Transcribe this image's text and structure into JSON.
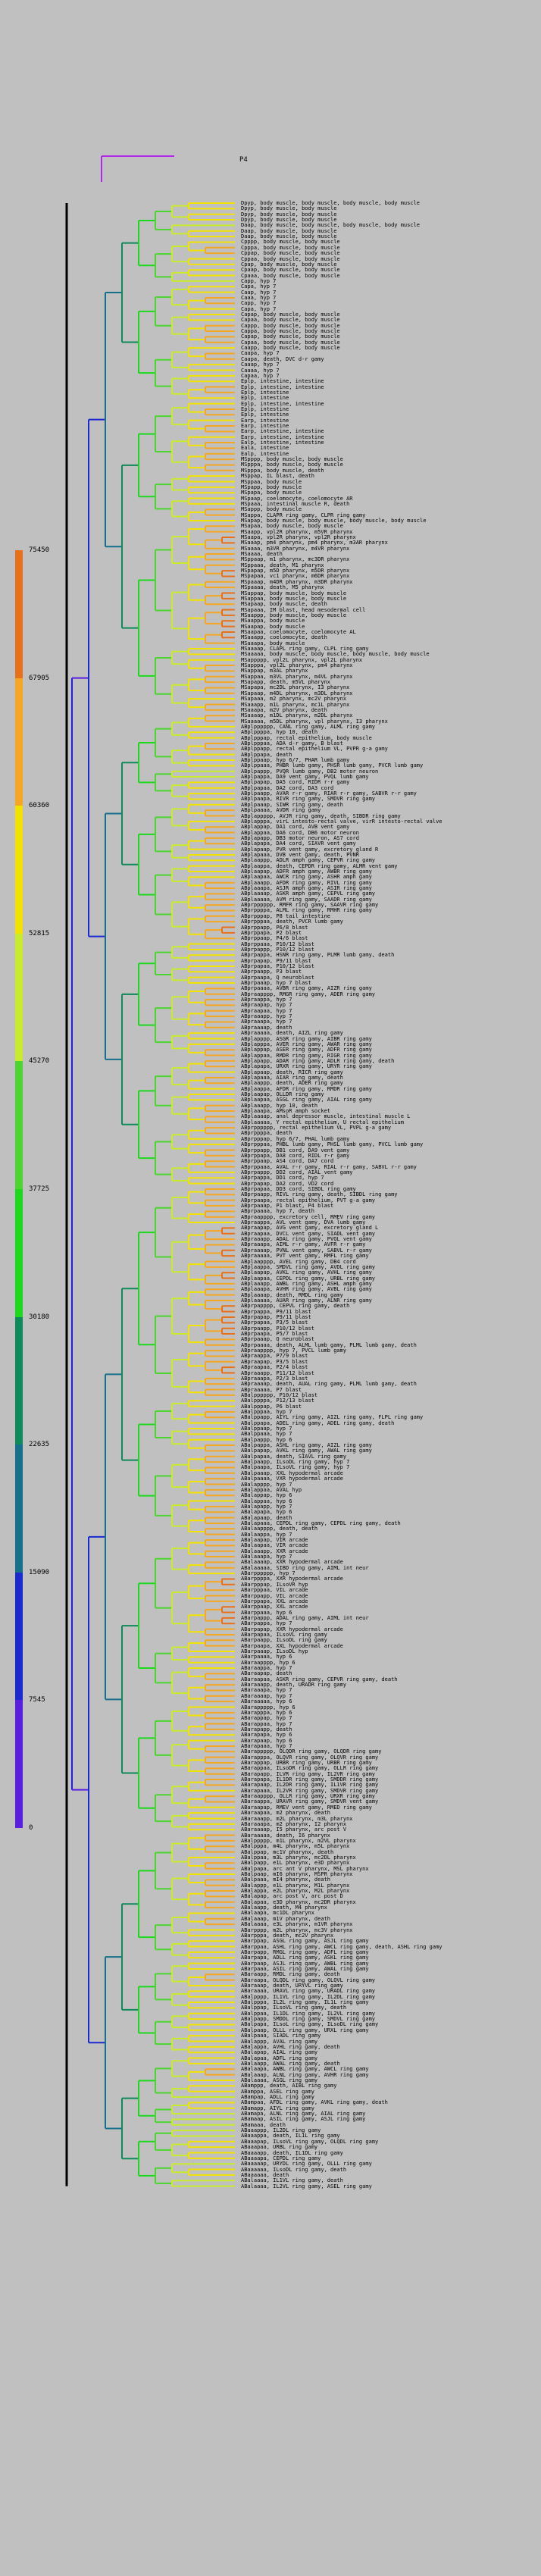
{
  "root_label": "P4",
  "scale": {
    "ticks": [
      "75450",
      "67905",
      "60360",
      "52815",
      "45270",
      "37725",
      "30180",
      "22635",
      "15090",
      "7545",
      "0"
    ],
    "colors": [
      "#e8701c",
      "#f5a623",
      "#f2e200",
      "#c8ec2c",
      "#4cd430",
      "#1ed81e",
      "#0f8a5a",
      "#16708c",
      "#1a2ad0",
      "#5a1ee0",
      "#b02ae8"
    ]
  },
  "leaf_labels": [
    "Dpyp, body muscle, body muscle, body muscle, body muscle",
    "Dpyp, body muscle, body muscle",
    "Dpyp, body muscle, body muscle",
    "Dpyp, body muscle, body muscle",
    "Daap, body muscle, body muscle, body muscle, body muscle",
    "Daap, body muscle, body muscle",
    "Daap, body muscle, body muscle",
    "Cpppp, body muscle, body muscle",
    "Cpppa, body muscle, body muscle",
    "Cppap, body muscle, body muscle",
    "Cppaa, body muscle, body muscle",
    "Cpap, body muscle, body muscle",
    "Cpaap, body muscle, body muscle",
    "Cpaaa, body muscle, body muscle",
    "Capp, hyp 7",
    "Capa, hyp 7",
    "Caap, hyp 7",
    "Caaa, hyp 7",
    "Capp, hyp 7",
    "Capa, hyp 7",
    "Capap, body muscle, body muscle",
    "Capaa, body muscle, body muscle",
    "Cappp, body muscle, body muscle",
    "Cappa, body muscle, body muscle",
    "Capap, body muscle, body muscle",
    "Capaa, body muscle, body muscle",
    "Caapp, body muscle, body muscle",
    "Caapa, hyp 7",
    "Caapa, death, DVC d-r gamy",
    "Caaap, hyp 7",
    "Caaaa, hyp 7",
    "Capaa, hyp 7",
    "Eplp, intestine, intestine",
    "Eplp, intestine, intestine",
    "Eplp, intestine",
    "Eplp, intestine",
    "Eplp, intestine, intestine",
    "Eplp, intestine",
    "Eplp, intestine",
    "Earp, intestine",
    "Earp, intestine",
    "Earp, intestine, intestine",
    "Earp, intestine, intestine",
    "Ealp, intestine, intestine",
    "Eala, intestine",
    "Ealp, intestine",
    "MSpppp, body muscle, body muscle",
    "MSpppa, body muscle, body muscle",
    "MSpppa, body muscle, death",
    "MSppap, IL blast, death",
    "MSppaa, body muscle",
    "MSpapp, body muscle",
    "MSpapa, body muscle",
    "MSpaap, coelomocyte, coelomocyte AR",
    "MSpaaa, intestinal muscle R, death",
    "MSappp, body muscle",
    "MSappa, CLAPR ring gamy, CLPR ring gamy",
    "MSapap, body muscle, body muscle, body muscle, body muscle",
    "MSapaa, body muscle, body muscle",
    "MSaapp, vpl2R pharynx, m5VR pharynx",
    "MSaapa, vpl2R pharynx, vpl2R pharynx",
    "MSaaap, pm4 pharynx, pm4 pharynx, m3AR pharynx",
    "MSaaaa, m3VR pharynx, m4VR pharynx",
    "MSaaaa, death",
    "MSppaap, m1 pharynx, mc3DR pharynx",
    "MSppaaa, death, M1 pharynx",
    "MSpapap, m5D pharynx, m5DR pharynx",
    "MSpapaa, vc1 pharynx, m6DR pharynx",
    "MSpaaap, m4DR pharynx, m3DR pharynx",
    "MSpaaaa, death, M5 pharynx",
    "MSappap, body muscle, body muscle",
    "MSappaa, body muscle, body muscle",
    "MSapaap, body muscle, death",
    "MSapaaa, IM blast, head mesodermal cell",
    "MSaappp, body muscle, body muscle",
    "MSaappa, body muscle",
    "MSaapap, body muscle",
    "MSaapaa, coelomocyte, coelomocyte AL",
    "MSaaapp, coelomocyte, death",
    "MSaaapa, body muscle",
    "MSaaaap, CLAPL ring gamy, CLPL ring gamy",
    "MSaaaaa, body muscle, body muscle, body muscle, body muscle",
    "MSappppp, vpl2L pharynx, vpl2L pharynx",
    "MSapppa, vpl2L pharynx, pm4 pharynx",
    "MSappap, m3AL pharynx",
    "MSappaa, m3VL pharynx, m4VL pharynx",
    "MSapapp, death, m5VL pharynx",
    "MSapapa, mc2DL pharynx, I3 pharynx",
    "MSapaap, m4DL pharynx, m3DL pharynx",
    "MSapaaa, m2 pharynx, mc2V pharynx",
    "MSaaapp, m1L pharynx, mc1L pharynx",
    "MSaaapa, m2V pharynx, death",
    "MSaaaap, m1DL pharynx, m2DL pharynx",
    "MSaaaaa, m5DL pharynx, vpl pharynx, I3 pharynx",
    "ABplpppppp, CANL ring gamy, ALML ring gamy",
    "ABplppppa, hyp 10, death",
    "ABplpppap, rectal epithelium, body muscle",
    "ABplpppaa, ADA d-r gamy, B blast",
    "ABplppapp, rectal epithelium VL, PVPR g-a gamy",
    "ABplppapa, death",
    "ABplppaap, hyp 6/7, PHAR lumb gamy",
    "ABplppaaa, PHBR lumb gamy, PHSR lumb gamy, PVCR lumb gamy",
    "ABplpappp, PVQR lumb gamy, DB2 motor neuron",
    "ABplpappa, DA9 vent gamy, PVQL lumb gamy",
    "ABplpapap, DA5 cord, RIDR r-r gamy",
    "ABplpapaa, DA2 cord, DA3 cord",
    "ABplpaapp, AVAR r-r gamy, RIAR r-r gamy, SABVR r-r gamy",
    "ABplpaapa, RIVR ring gamy, SMDVR ring gamy",
    "ABplpaaap, SIWR ring gamy, death",
    "ABplpaaaa, AVDR ring gamy",
    "ABplappppp, AVJR ring gamy, death, SIBDR ring gamy",
    "ABplapppa, virL intesto-rectal valve, virR intesto-rectal valve",
    "ABplappap, DA1 cord, AVB vent gamy",
    "ABplappaa, DA6 cord, DB6 motor neuron",
    "ABplapapp, DB3 motor neuron, AS7 cord",
    "ABplapapa, DA4 cord, SIAVR vent gamy",
    "ABplapaap, PVR vent gamy, excretory gland R",
    "ABplapaaa, DVB vent gamy, death, PVNR",
    "ABplaappp, ADLR amph gamy, CEPVR ring gamy",
    "ABplaappa, death, CEPDR ring gamy, ALMR vent gamy",
    "ABplaapap, ADFR amph gamy, AWBR ring gamy",
    "ABplaapaa, AWCR ring gamy, ASHR amph gamy",
    "ABplaaapp, AFDR ring gamy, RIVL ring gamy",
    "ABplaaapa, ASJR amph gamy, ASIR ring gamy",
    "ABplaaaap, ASKR amph gamy, CEPVL ring gamy",
    "ABplaaaaa, AVM ring gamy, SAADR ring gamy",
    "ABprpppppp, RMFR ring gamy, SAAVR ring gamy",
    "ABprppppa, ALML ring gamy, RMHR ring gamy",
    "ABprpppap, P8 tail intestine",
    "ABprpppaa, death, PVCR lumb gamy",
    "ABprppapp, P6/8 blast",
    "ABprppapa, P2 blast",
    "ABprppaap, P4/6 blast",
    "ABprppaaa, P10/12 blast",
    "ABprpappp, P10/12 blast",
    "ABprpappa, HSNR ring gamy, PLMR lumb gamy, death",
    "ABprpapap, P9/11 blast",
    "ABprpapaa, P10/12 blast",
    "ABprpaapp, P3 blast",
    "ABprpaapa, Q neuroblast",
    "ABprpaaap, hyp 7 blast",
    "ABprpaaaa, AVBR ring gamy, AIZR ring gamy",
    "ABpraapppp, RMGR ring gamy, ADER ring gamy",
    "ABpraappa, hyp 7",
    "ABpraapap, hyp 7",
    "ABpraapaa, hyp 7",
    "ABpraaapp, hyp 7",
    "ABpraaapa, hyp 7",
    "ABpraaaap, death",
    "ABpraaaaa, death, AIZL ring gamy",
    "ABplapppp, ASGR ring gamy, AIBR ring gamy",
    "ABplapppa, AVER ring gamy, AWAR ring gamy",
    "ABplappap, ASER ring gamy, ADFR ring gamy",
    "ABplappaa, RMDR ring gamy, RIGR ring gamy",
    "ABplapapp, ADAR ring gamy, ADLR ring gamy, death",
    "ABplapapa, URXR ring gamy, URYR ring gamy",
    "ABplapaap, death, RICR ring gamy",
    "ABplapaaa, AIAR ring gamy, death",
    "ABplaappp, death, ADER ring gamy",
    "ABplaappa, AFDR ring gamy, RMDR ring gamy",
    "ABplaapap, OLLDR ring gamy",
    "ABplaapaa, ASGL ring gamy, AIAL ring gamy",
    "ABplaaapp, hyp 10, death",
    "ABplaaapa, AMsoR amph socket",
    "ABplaaaap, anal depressor muscle, intestinal muscle L",
    "ABplaaaaa, Y rectal epithelium, U rectal epithelium",
    "ABprpppppp, rectal epithelium VL, PVPL g-a gamy",
    "ABprppppa, death",
    "ABprpppap, hyp 6/7, PHAL lumb gamy",
    "ABprpppaa, PHBL lumb gamy, PHSL lumb gamy, PVCL lumb gamy",
    "ABprppapp, DB1 cord, DA9 vent gamy",
    "ABprppapa, DA8 cord, RIDL r-r gamy",
    "ABprppaap, AS4 cord, DA7 cord",
    "ABprppaaa, AVAL r-r gamy, RIAL r-r gamy, SABVL r-r gamy",
    "ABprpappp, DD2 cord, AIAL vent gamy",
    "ABprpappa, DD1 cord, hyp 7",
    "ABprpapap, DA2 cord, VD2 cord",
    "ABprpapaa, DD3 cord, SIBDL ring gamy",
    "ABprpaapp, RIVL ring gamy, death, SIBDL ring gamy",
    "ABprpaapa, rectal epithelium, PVT g-a gamy",
    "ABprpaaap, P1 blast, P4 blast",
    "ABprpaaaa, hyp 7, death",
    "ABpraapppp, excretory cell, RMEV ring gamy",
    "ABpraappa, AVL vent gamy, DVA lumb gamy",
    "ABpraapap, AVG vent gamy, excretory gland L",
    "ABpraapaa, DVCL vent gamy, SIADL vent gamy",
    "ABpraaapp, ADAL ring gamy, PVQL vent gamy",
    "ABpraaapa, AIML r-r gamy, AVFR r-r gamy",
    "ABpraaaap, PVNL vent gamy, SABVL r-r gamy",
    "ABpraaaaa, PVT vent gamy, RMFL ring gamy",
    "ABplaapppp, AVEL ring gamy, DB4 cord",
    "ABplaappa, SMDVL ring gamy, AVDL ring gamy",
    "ABplaapap, AVKL ring gamy, AVHL ring gamy",
    "ABplaapaa, CEPDL ring gamy, URBL ring gamy",
    "ABplaaapp, AWBL ring gamy, ASHL amph gamy",
    "ABplaaapa, AVHR ring gamy, AVBL ring gamy",
    "ABplaaaap, death, RMDL ring gamy",
    "ABplaaaaa, AUAR ring gamy, ALNR ring gamy",
    "ABprpapppp, CEPVL ring gamy, death",
    "ABprpappa, P9/11 blast",
    "ABprpapap, P9/11 blast",
    "ABprpapaa, P3/5 blast",
    "ABprpaapp, P10/12 blast",
    "ABprpaapa, P5/7 blast",
    "ABprpaaap, Q neuroblast",
    "ABprpaaaa, death, ALML lumb gamy, PLML lumb gamy, death",
    "ABpraapppp, hyp 7, PVCL lumb gamy",
    "ABpraappa, P7/9 blast",
    "ABpraapap, P3/5 blast",
    "ABpraapaa, P2/4 blast",
    "ABpraaapp, P11/12 blast",
    "ABpraaapa, P2/3 blast",
    "ABpraaaap, death, AUAL ring gamy, PLML lumb gamy, death",
    "ABpraaaaa, P7 blast",
    "ABalpppppp, P10/12 blast",
    "ABalppppa, P12/13 blast",
    "ABalpppap, P6 blast",
    "ABalpppaa, hyp 7",
    "ABalppapp, AIYL ring gamy, AIZL ring gamy, FLPL ring gamy",
    "ABalppapa, ADEL ring gamy, ADEL ring gamy, death",
    "ABalppaap, hyp 7",
    "ABalppaaa, hyp 7",
    "ABalpappp, hyp 6",
    "ABalpappa, ASHL ring gamy, AIZL ring gamy",
    "ABalpapap, AVKL ring gamy, AWAL ring gamy",
    "ABalpapaa, death, SIAVL ring gamy",
    "ABalpaapp, ILsoDL ring gamy, hyp 7",
    "ABalpaapa, ILsoVL ring gamy, hyp 7",
    "ABalpaaap, XXL hypodermal arcade",
    "ABalpaaaa, VXR hypodermal arcade",
    "ABalapppp, hyp 7",
    "ABalappaa, AVAL hyp",
    "ABalappap, hyp 6",
    "ABalappaa, hyp 6",
    "ABalapapp, hyp 7",
    "ABalapapa, hyp 6",
    "ABalapaap, death",
    "ABalapaaa, CEPDL ring gamy, CEPDL ring gamy, death",
    "ABalaapppp, death, death",
    "ABalaappa, hyp 7",
    "ABalaapap, VIR arcade",
    "ABalaapaa, VIR arcade",
    "ABalaaapp, XXR arcade",
    "ABalaaapa, hyp 7",
    "ABalaaaap, XXR hypodermal arcade",
    "ABalaaaaa, SIBD ring gamy, AIML int neur",
    "ABarpppppp, hyp 7",
    "ABarppppa, XXR hypodermal arcade",
    "ABarpppap, ILsoVR hyp",
    "ABarpppaa, VIL arcade",
    "ABarppapp, VIL arcade",
    "ABarppapa, XXL arcade",
    "ABarppaap, XXL arcade",
    "ABarppaaa, hyp 6",
    "ABarpappp, ADAL ring gamy, AIML int neur",
    "ABarpappa, hyp 7",
    "ABarpapap, XXR hypodermal arcade",
    "ABarpapaa, ILsoVL ring gamy",
    "ABarpaapp, ILsoDL ring gamy",
    "ABarpaapa, XXL hypodermal arcade",
    "ABarpaaap, ILsoDL hyp",
    "ABarpaaaa, hyp 6",
    "ABaraapppp, hyp 6",
    "ABaraappa, hyp 7",
    "ABaraapap, death",
    "ABaraapaa, ASKR ring gamy, CEPVR ring gamy, death",
    "ABaraaapp, death, URADR ring gamy",
    "ABaraaapa, hyp 7",
    "ABaraaaap, hyp 7",
    "ABaraaaaa, hyp 6",
    "ABarappppp, hyp 6",
    "ABarapppa, hyp 6",
    "ABarappap, hyp 7",
    "ABarappaa, hyp 7",
    "ABarapapp, death",
    "ABarapapa, hyp 6",
    "ABarapaap, hyp 6",
    "ABarapaaa, hyp 7",
    "ABarappppp, OLQDR ring gamy, OLQDR ring gamy",
    "ABarapppa, OLQVR ring gamy, OLQVR ring gamy",
    "ABarappap, URBR ring gamy, URBR ring gamy",
    "ABarappaa, ILsoDR ring gamy, OLLR ring gamy",
    "ABarapapp, ILVR ring gamy, IL2VR ring gamy",
    "ABarapapa, IL1DR ring gamy, SMDDR ring gamy",
    "ABarapaap, IL2DR ring gamy, IL1VR ring gamy",
    "ABarapaaa, IL2VR ring gamy, SMDVR ring gamy",
    "ABaraapppp, OLLR ring gamy, URXR ring gamy",
    "ABaraappa, URAVR ring gamy, SMDVR vent gamy",
    "ABaraapap, RMEV vent gamy, RMED ring gamy",
    "ABaraapaa, m2 pharynx, death",
    "ABaraaapp, m2L pharynx, m3L pharynx",
    "ABaraaapa, m2 pharynx, I2 pharynx",
    "ABaraaaap, I5 pharynx, arc post V",
    "ABaraaaaa, death, I6 pharynx",
    "ABalppppp, m1L pharynx, m2VL pharynx",
    "ABalpppa, m4L pharynx, m5L pharynx",
    "ABalppap, mc1V pharynx, death",
    "ABalppaa, m3L pharynx, mc2DL pharynx",
    "ABalpapp, e1L pharynx, e3D pharynx",
    "ABalpapa, arc ant V pharynx, MSL pharynx",
    "ABalpaap, mI6 pharynx, MSPR pharynx",
    "ABalpaaa, mI4 pharynx, death",
    "ABalappp, e1L pharynx, M1L pharynx",
    "ABalappa, e2L pharynx, M2L pharynx",
    "ABalapap, arc post V, arc post D",
    "ABalapaa, e3D pharynx, mc2DR pharynx",
    "ABalaapp, death, M4 pharynx",
    "ABalaapa, mc1DL pharynx",
    "ABalaaap, m1V pharynx, death",
    "ABalaaaa, e3L pharynx, m1VR pharynx",
    "ABarpppp, m2L pharynx, mc3V pharynx",
    "ABarpppa, death, mc2V pharynx",
    "ABarppap, ASGL ring gamy, ASJL ring gamy",
    "ABarppaa, ASHL ring gamy, AWCL ring gamy, death, ASHL ring gamy",
    "ABarpapp, RMGL ring gamy, ADFL ring gamy",
    "ABarpapa, ADLL ring gamy, ASKL ring gamy",
    "ABarpaap, ASJL ring gamy, AWBL ring gamy",
    "ABarpaaa, ASIL ring gamy, AWAL ring gamy",
    "ABaraapp, RMDL ring gamy, death",
    "ABaraapa, OLQDL ring gamy, OLQVL ring gamy",
    "ABaraaap, death, URYVL ring gamy",
    "ABaraaaa, URAVL ring gamy, URADL ring gamy",
    "ABalpppp, IL1VL ring gamy, IL2DL ring gamy",
    "ABalpppa, IL2L ring gamy, IL1L ring gamy",
    "ABalppap, ILsoVL ring gamy, death",
    "ABalppaa, IL1DL ring gamy, IL2VL ring gamy",
    "ABalpapp, SMDDL ring gamy, SMDVL ring gamy",
    "ABalpapa, ILsoL ring gamy, ILsoDL ring gamy",
    "ABalpaap, OLLL ring gamy, URXL ring gamy",
    "ABalpaaa, SIADL ring gamy",
    "ABalappp, AVAL ring gamy",
    "ABalappa, AVHL ring gamy, death",
    "ABalapap, AIAL ring gamy",
    "ABalapaa, ADFL ring gamy",
    "ABalaapp, AWAL ring gamy, death",
    "ABalaapa, AWBL ring gamy, AWCL ring gamy",
    "ABalaaap, ALNL ring gamy, AVHR ring gamy",
    "ABalaaaa, ASGL ring gamy",
    "ABamppp, death, AIBL ring gamy",
    "ABamppa, ASEL ring gamy",
    "ABampap, ADLL ring gamy",
    "ABampaa, AFDL ring gamy, AVKL ring gamy, death",
    "ABamapp, AIYL ring gamy",
    "ABamapa, ALNL ring gamy, AIAL ring gamy",
    "ABamaap, ASIL ring gamy, ASJL ring gamy",
    "ABamaaa, death",
    "ABaaappp, IL2DL ring gamy",
    "ABaaappa, death, IL1L ring gamy",
    "ABaaapap, ILsoVL ring gamy, OLQDL ring gamy",
    "ABaaapaa, URBL ring gamy",
    "ABaaaapp, death, IL1DL ring gamy",
    "ABaaaapa, CEPDL ring gamy",
    "ABaaaaap, URYDL ring gamy, OLLL ring gamy",
    "ABaaaaaa, ILsoDL ring gamy, death",
    "ABaaaaaa, death",
    "ABalaaaa, IL1VL ring gamy, death",
    "ABalaaaa, IL2VL ring gamy, ASEL ring gamy"
  ]
}
